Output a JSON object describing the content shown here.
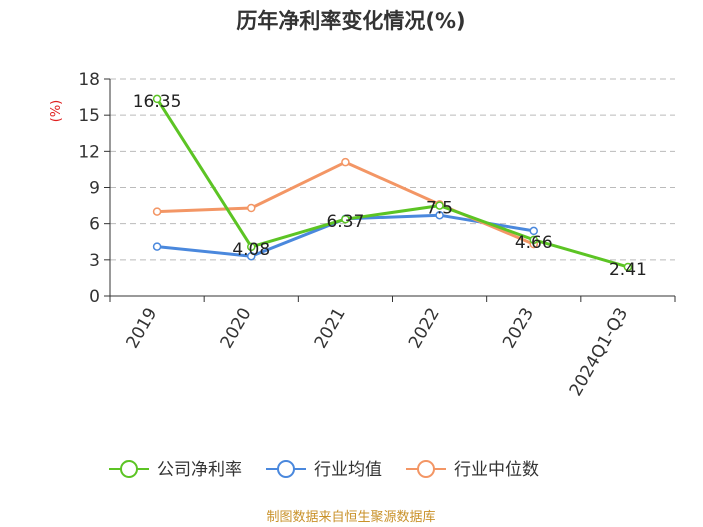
{
  "chart_data": {
    "type": "line",
    "title": "历年净利率变化情况(%)",
    "ylabel": "(%)",
    "categories": [
      "2019",
      "2020",
      "2021",
      "2022",
      "2023",
      "2024Q1-Q3"
    ],
    "ylim": [
      0,
      18
    ],
    "yticks": [
      0,
      3,
      6,
      9,
      12,
      15,
      18
    ],
    "grid": true,
    "legend_position": "bottom",
    "series": [
      {
        "name": "公司净利率",
        "color": "#5cc424",
        "values": [
          16.35,
          4.08,
          6.37,
          7.5,
          4.66,
          2.41
        ],
        "labels": [
          "16.35",
          "4.08",
          "6.37",
          "7.5",
          "4.66",
          "2.41"
        ]
      },
      {
        "name": "行业均值",
        "color": "#4a88dd",
        "values": [
          4.1,
          3.3,
          6.4,
          6.7,
          5.4,
          null
        ],
        "labels": []
      },
      {
        "name": "行业中位数",
        "color": "#f39665",
        "values": [
          7.0,
          7.3,
          11.1,
          7.6,
          4.3,
          null
        ],
        "labels": []
      }
    ]
  },
  "source_note": "制图数据来自恒生聚源数据库",
  "source_color": "#c9922a",
  "ylabel_color": "#e02020"
}
